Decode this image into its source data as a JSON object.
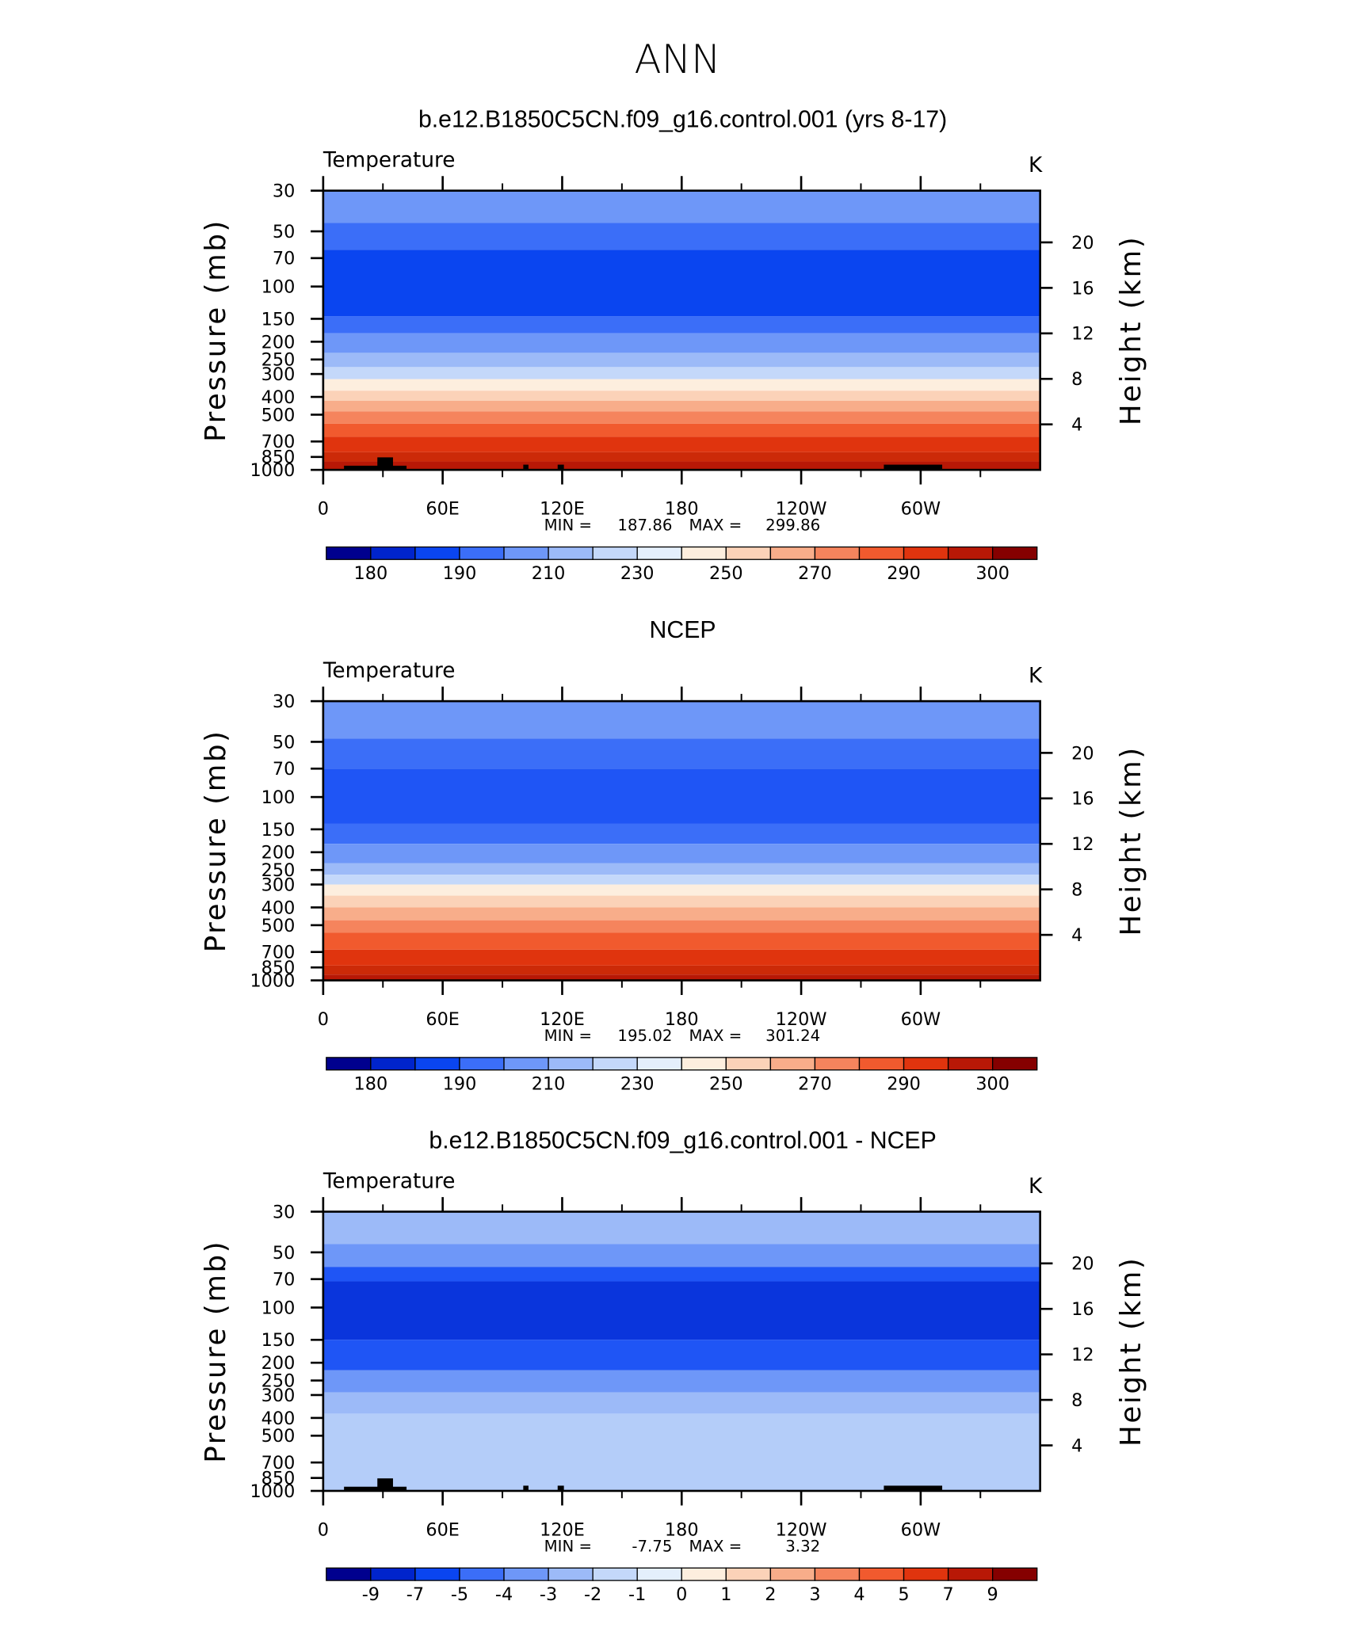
{
  "title": "ANN",
  "chart_data": [
    {
      "type": "contour",
      "title": "b.e12.B1850C5CN.f09_g16.control.001 (yrs 8-17)",
      "subtitle": "Temperature",
      "units": "K",
      "ylabel": "Pressure (mb)",
      "y2label": "Height (km)",
      "log_y": true,
      "ylim": [
        1000,
        30
      ],
      "yticks": [
        30,
        50,
        70,
        100,
        150,
        200,
        250,
        300,
        400,
        500,
        700,
        850,
        1000
      ],
      "y2ticks": [
        4,
        8,
        12,
        16,
        20
      ],
      "xlim": [
        0,
        360
      ],
      "xticks": [
        0,
        {
          "value": 60,
          "label": "60E"
        },
        {
          "value": 120,
          "label": "120E"
        },
        180,
        {
          "value": 240,
          "label": "120W"
        },
        {
          "value": 300,
          "label": "60W"
        }
      ],
      "min_label": "MIN =",
      "min": 187.86,
      "max_label": "MAX =",
      "max": 299.86,
      "bands": [
        {
          "from": 30,
          "to": 45,
          "color": "#6e97f8"
        },
        {
          "from": 45,
          "to": 63,
          "color": "#3b6ef8"
        },
        {
          "from": 63,
          "to": 145,
          "color": "#0a45f0"
        },
        {
          "from": 145,
          "to": 180,
          "color": "#3b6ef8"
        },
        {
          "from": 180,
          "to": 230,
          "color": "#6e97f8"
        },
        {
          "from": 230,
          "to": 275,
          "color": "#9cbaf8"
        },
        {
          "from": 275,
          "to": 320,
          "color": "#c4d8fa"
        },
        {
          "from": 320,
          "to": 370,
          "color": "#fdeede"
        },
        {
          "from": 370,
          "to": 420,
          "color": "#fbd2b8"
        },
        {
          "from": 420,
          "to": 480,
          "color": "#f8ad8a"
        },
        {
          "from": 480,
          "to": 560,
          "color": "#f5845d"
        },
        {
          "from": 560,
          "to": 660,
          "color": "#f15a2e"
        },
        {
          "from": 660,
          "to": 800,
          "color": "#e0340e"
        },
        {
          "from": 800,
          "to": 900,
          "color": "#cc2a08"
        },
        {
          "from": 900,
          "to": 1000,
          "color": "#b81806"
        }
      ],
      "colorbar_colors": [
        "#00008e",
        "#0024cc",
        "#0a45f0",
        "#3b6ef8",
        "#6e97f8",
        "#9cbaf8",
        "#c4d8fa",
        "#e4effc",
        "#fdeede",
        "#fbd2b8",
        "#f8ad8a",
        "#f5845d",
        "#f15a2e",
        "#e0340e",
        "#b81806",
        "#850000"
      ],
      "colorbar_levels": [
        180,
        null,
        190,
        null,
        210,
        null,
        230,
        null,
        250,
        null,
        270,
        null,
        290,
        null,
        300
      ]
    },
    {
      "type": "contour",
      "title": "NCEP",
      "subtitle": "Temperature",
      "units": "K",
      "ylabel": "Pressure (mb)",
      "y2label": "Height (km)",
      "log_y": true,
      "ylim": [
        1000,
        30
      ],
      "yticks": [
        30,
        50,
        70,
        100,
        150,
        200,
        250,
        300,
        400,
        500,
        700,
        850,
        1000
      ],
      "y2ticks": [
        4,
        8,
        12,
        16,
        20
      ],
      "xlim": [
        0,
        360
      ],
      "xticks": [
        0,
        {
          "value": 60,
          "label": "60E"
        },
        {
          "value": 120,
          "label": "120E"
        },
        180,
        {
          "value": 240,
          "label": "120W"
        },
        {
          "value": 300,
          "label": "60W"
        }
      ],
      "min_label": "MIN =",
      "min": 195.02,
      "max_label": "MAX =",
      "max": 301.24,
      "bands": [
        {
          "from": 30,
          "to": 48,
          "color": "#6e97f8"
        },
        {
          "from": 48,
          "to": 70,
          "color": "#3b6ef8"
        },
        {
          "from": 70,
          "to": 140,
          "color": "#1f55f5"
        },
        {
          "from": 140,
          "to": 180,
          "color": "#3b6ef8"
        },
        {
          "from": 180,
          "to": 230,
          "color": "#6e97f8"
        },
        {
          "from": 230,
          "to": 265,
          "color": "#9cbaf8"
        },
        {
          "from": 265,
          "to": 300,
          "color": "#c4d8fa"
        },
        {
          "from": 300,
          "to": 345,
          "color": "#fdeede"
        },
        {
          "from": 345,
          "to": 400,
          "color": "#fbd2b8"
        },
        {
          "from": 400,
          "to": 470,
          "color": "#f8ad8a"
        },
        {
          "from": 470,
          "to": 550,
          "color": "#f5845d"
        },
        {
          "from": 550,
          "to": 680,
          "color": "#f15a2e"
        },
        {
          "from": 680,
          "to": 830,
          "color": "#e0340e"
        },
        {
          "from": 830,
          "to": 930,
          "color": "#cc2a08"
        },
        {
          "from": 930,
          "to": 1000,
          "color": "#b81806"
        }
      ],
      "colorbar_colors": [
        "#00008e",
        "#0024cc",
        "#0a45f0",
        "#3b6ef8",
        "#6e97f8",
        "#9cbaf8",
        "#c4d8fa",
        "#e4effc",
        "#fdeede",
        "#fbd2b8",
        "#f8ad8a",
        "#f5845d",
        "#f15a2e",
        "#e0340e",
        "#b81806",
        "#850000"
      ],
      "colorbar_levels": [
        180,
        null,
        190,
        null,
        210,
        null,
        230,
        null,
        250,
        null,
        270,
        null,
        290,
        null,
        300
      ]
    },
    {
      "type": "contour",
      "title": "b.e12.B1850C5CN.f09_g16.control.001 - NCEP",
      "subtitle": "Temperature",
      "units": "K",
      "ylabel": "Pressure (mb)",
      "y2label": "Height (km)",
      "log_y": true,
      "ylim": [
        1000,
        30
      ],
      "yticks": [
        30,
        50,
        70,
        100,
        150,
        200,
        250,
        300,
        400,
        500,
        700,
        850,
        1000
      ],
      "y2ticks": [
        4,
        8,
        12,
        16,
        20
      ],
      "xlim": [
        0,
        360
      ],
      "xticks": [
        0,
        {
          "value": 60,
          "label": "60E"
        },
        {
          "value": 120,
          "label": "120E"
        },
        180,
        {
          "value": 240,
          "label": "120W"
        },
        {
          "value": 300,
          "label": "60W"
        }
      ],
      "min_label": "MIN =",
      "min": -7.75,
      "max_label": "MAX =",
      "max": 3.32,
      "bands": [
        {
          "from": 30,
          "to": 45,
          "color": "#9cbaf8"
        },
        {
          "from": 45,
          "to": 60,
          "color": "#6e97f8"
        },
        {
          "from": 60,
          "to": 72,
          "color": "#1f55f5"
        },
        {
          "from": 72,
          "to": 150,
          "color": "#0a35dc"
        },
        {
          "from": 150,
          "to": 220,
          "color": "#1f55f5"
        },
        {
          "from": 220,
          "to": 290,
          "color": "#6e97f8"
        },
        {
          "from": 290,
          "to": 380,
          "color": "#9cbaf8"
        },
        {
          "from": 380,
          "to": 1000,
          "color": "#b4cdf9"
        }
      ],
      "colorbar_colors": [
        "#00008e",
        "#0024cc",
        "#0a45f0",
        "#3b6ef8",
        "#6e97f8",
        "#9cbaf8",
        "#c4d8fa",
        "#e4effc",
        "#fdeede",
        "#fbd2b8",
        "#f8ad8a",
        "#f5845d",
        "#f15a2e",
        "#e0340e",
        "#b81806",
        "#850000"
      ],
      "colorbar_levels": [
        -9,
        -7,
        -5,
        -4,
        -3,
        -2,
        -1,
        0,
        1,
        2,
        3,
        4,
        5,
        7,
        9
      ]
    }
  ]
}
